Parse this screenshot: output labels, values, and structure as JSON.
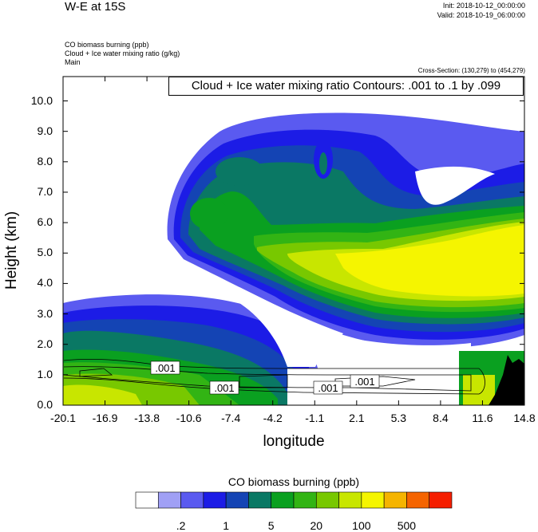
{
  "header": {
    "title": "W-E at 15S",
    "init": "Init: 2018-10-12_00:00:00",
    "valid": "Valid: 2018-10-19_06:00:00",
    "field1": "CO biomass burning   (ppb)",
    "field2": "Cloud + Ice water mixing ratio   (g/kg)",
    "field3": "Main",
    "cross_section": "Cross-Section: (130,279) to (454,279)"
  },
  "contour_info": "Cloud + Ice water mixing ratio Contours: .001 to .1 by .099",
  "colorbar": {
    "title": "CO biomass burning  (ppb)",
    "colors": [
      "#ffffff",
      "#a0a0f5",
      "#5a5af0",
      "#1c1ce6",
      "#1444b4",
      "#0a7864",
      "#0aa020",
      "#32b414",
      "#78c800",
      "#c8e600",
      "#f5f500",
      "#f5b400",
      "#f56400",
      "#f51e00"
    ],
    "labels": [
      ".2",
      "1",
      "5",
      "20",
      "100",
      "500"
    ]
  },
  "chart_data": {
    "type": "filled-contour",
    "title": "W-E at 15S",
    "xlabel": "longitude",
    "ylabel": "Height (km)",
    "x_ticks": [
      "-20.1",
      "-16.9",
      "-13.8",
      "-10.6",
      "-7.4",
      "-4.2",
      "-1.1",
      "2.1",
      "5.3",
      "8.4",
      "11.6",
      "14.8"
    ],
    "y_ticks": [
      "0.0",
      "1.0",
      "2.0",
      "3.0",
      "4.0",
      "5.0",
      "6.0",
      "7.0",
      "8.0",
      "9.0",
      "10.0"
    ],
    "xlim": [
      -20.1,
      14.8
    ],
    "ylim": [
      0.0,
      10.8
    ],
    "contour_labels": [
      ".001",
      ".001",
      ".001",
      ".001"
    ]
  }
}
